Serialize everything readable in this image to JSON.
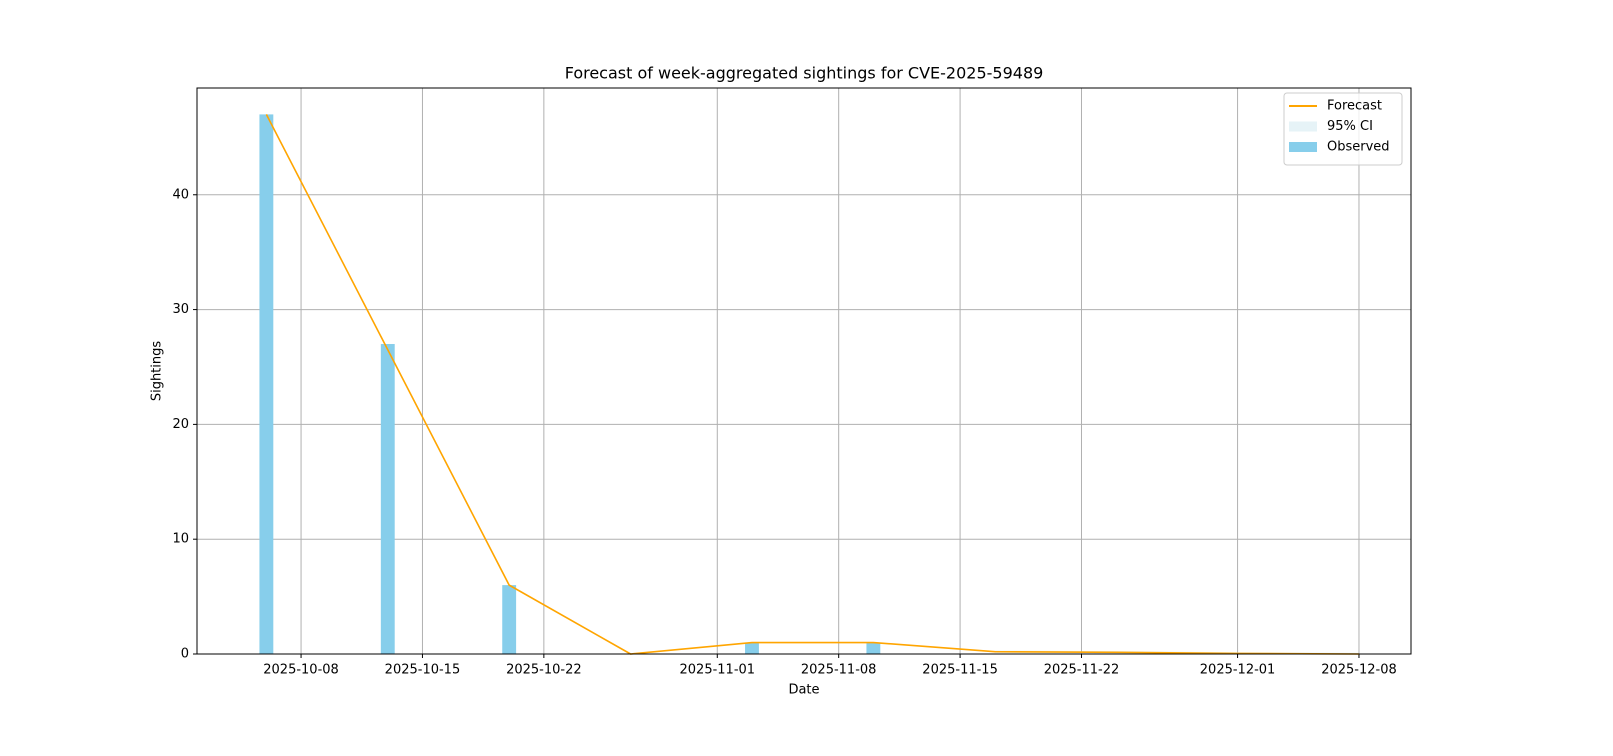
{
  "chart_data": {
    "type": "combo",
    "title": "Forecast of week-aggregated sightings for CVE-2025-59489",
    "x_label": "Date",
    "y_label": "Sightings",
    "xlim": [
      "2025-10-02",
      "2025-12-11"
    ],
    "xticks": [
      "2025-10-08",
      "2025-10-15",
      "2025-10-22",
      "2025-11-01",
      "2025-11-08",
      "2025-11-15",
      "2025-11-22",
      "2025-12-01",
      "2025-12-08"
    ],
    "ylim": [
      0,
      49.3
    ],
    "yticks": [
      0,
      10,
      20,
      30,
      40
    ],
    "grid": true,
    "legend": "upper right",
    "series": [
      {
        "name": "Forecast",
        "type": "line",
        "color": "#ffa500",
        "x": [
          "2025-10-06",
          "2025-10-13",
          "2025-10-20",
          "2025-10-27",
          "2025-11-03",
          "2025-11-10",
          "2025-11-17",
          "2025-11-24",
          "2025-12-01",
          "2025-12-08"
        ],
        "values": [
          47,
          26.5,
          6,
          0,
          1,
          1,
          0.2,
          0.15,
          0.05,
          0
        ]
      },
      {
        "name": "95% CI",
        "type": "band",
        "color": "#add8e6",
        "x": [
          "2025-11-17",
          "2025-11-24",
          "2025-12-01",
          "2025-12-08"
        ],
        "lower": [
          0.1,
          0.05,
          0,
          0
        ],
        "upper": [
          0.3,
          0.25,
          0.15,
          0.1
        ]
      },
      {
        "name": "Observed",
        "type": "bar",
        "color": "#87ceeb",
        "x": [
          "2025-10-06",
          "2025-10-13",
          "2025-10-20",
          "2025-11-03",
          "2025-11-10"
        ],
        "values": [
          47,
          27,
          6,
          1,
          1
        ]
      }
    ]
  }
}
